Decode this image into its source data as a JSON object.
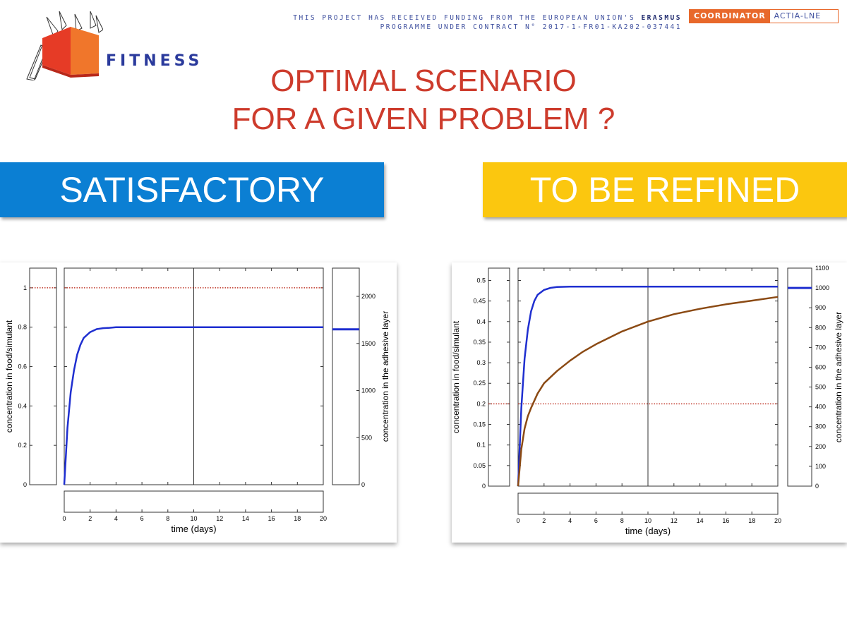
{
  "header": {
    "logo_text": "FITNESS",
    "funding_line1": "THIS PROJECT HAS RECEIVED FUNDING FROM THE EUROPEAN UNION'S",
    "funding_line1_bold": "ERASMUS",
    "funding_line2": "PROGRAMME UNDER CONTRACT N° 2017-1-FR01-KA202-037441",
    "coordinator_label": "COORDINATOR",
    "coordinator_name": "ACTIA-LNE"
  },
  "title": {
    "line1": "OPTIMAL SCENARIO",
    "line2": "FOR A GIVEN PROBLEM ?"
  },
  "banners": {
    "left": "SATISFACTORY",
    "right": "TO BE REFINED"
  },
  "colors": {
    "title": "#cd3b2c",
    "banner_left": "#0b7fd3",
    "banner_right": "#fbc70f",
    "food_curve": "#1f2fd0",
    "adhesive_curve": "#8b4a14",
    "threshold": "#c0392b"
  },
  "chart_data": [
    {
      "type": "line",
      "xlabel": "time (days)",
      "ylabel": "concentration in food/simulant",
      "ylabel_right": "concentration in the adhesive layer",
      "xlim": [
        0,
        20
      ],
      "ylim": [
        0,
        1.1
      ],
      "ylim_right": [
        0,
        2300
      ],
      "xticks": [
        0,
        2,
        4,
        6,
        8,
        10,
        12,
        14,
        16,
        18,
        20
      ],
      "yticks": [
        0,
        0.2,
        0.4,
        0.6,
        0.8,
        1
      ],
      "yticks_right": [
        0,
        500,
        1000,
        1500,
        2000
      ],
      "vline_x": 10,
      "threshold_y": 1.0,
      "side_marker_right": 1650,
      "series": [
        {
          "axis": "left",
          "color": "#1f2fd0",
          "x": [
            0,
            0.25,
            0.5,
            0.75,
            1,
            1.25,
            1.5,
            2,
            2.5,
            3,
            3.5,
            4,
            6,
            10,
            15,
            20
          ],
          "y": [
            0,
            0.29,
            0.47,
            0.58,
            0.66,
            0.71,
            0.745,
            0.775,
            0.79,
            0.795,
            0.797,
            0.8,
            0.8,
            0.8,
            0.8,
            0.8
          ]
        }
      ]
    },
    {
      "type": "line",
      "xlabel": "time (days)",
      "ylabel": "concentration in food/simulant",
      "ylabel_right": "concentration in the adhesive layer",
      "xlim": [
        0,
        20
      ],
      "ylim": [
        0,
        0.53
      ],
      "ylim_right": [
        0,
        1100
      ],
      "xticks": [
        0,
        2,
        4,
        6,
        8,
        10,
        12,
        14,
        16,
        18,
        20
      ],
      "yticks": [
        0,
        0.05,
        0.1,
        0.15,
        0.2,
        0.25,
        0.3,
        0.35,
        0.4,
        0.45,
        0.5
      ],
      "yticks_right": [
        0,
        100,
        200,
        300,
        400,
        500,
        600,
        700,
        800,
        900,
        1000,
        1100
      ],
      "vline_x": 10,
      "threshold_y": 0.2,
      "side_marker_right": 1000,
      "series": [
        {
          "axis": "left",
          "color": "#1f2fd0",
          "x": [
            0,
            0.25,
            0.5,
            0.75,
            1,
            1.25,
            1.5,
            2,
            2.5,
            3,
            4,
            6,
            10,
            15,
            20
          ],
          "y": [
            0,
            0.19,
            0.31,
            0.38,
            0.425,
            0.45,
            0.465,
            0.477,
            0.482,
            0.484,
            0.485,
            0.485,
            0.485,
            0.485,
            0.485
          ]
        },
        {
          "axis": "left",
          "color": "#8b4a14",
          "x": [
            0,
            0.25,
            0.5,
            0.75,
            1,
            1.5,
            2,
            3,
            4,
            5,
            6,
            8,
            10,
            12,
            14,
            16,
            18,
            20
          ],
          "y": [
            0,
            0.09,
            0.14,
            0.17,
            0.19,
            0.225,
            0.25,
            0.28,
            0.305,
            0.327,
            0.345,
            0.376,
            0.4,
            0.418,
            0.431,
            0.442,
            0.451,
            0.46
          ]
        }
      ]
    }
  ]
}
